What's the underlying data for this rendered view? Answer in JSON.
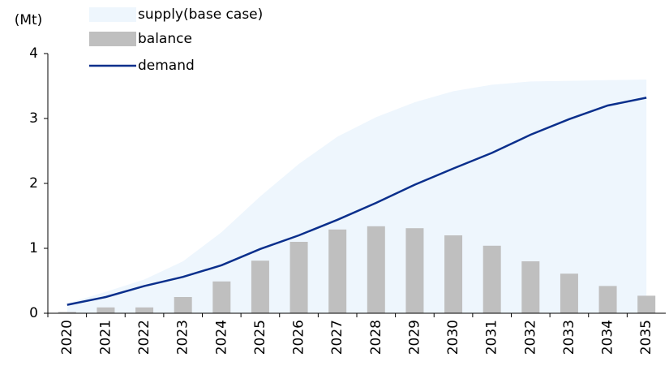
{
  "chart_data": {
    "type": "combo",
    "y_label": "(Mt)",
    "categories": [
      "2020",
      "2021",
      "2022",
      "2023",
      "2024",
      "2025",
      "2026",
      "2027",
      "2028",
      "2029",
      "2030",
      "2031",
      "2032",
      "2033",
      "2034",
      "2035"
    ],
    "series": [
      {
        "name": "supply(base case)",
        "type": "area",
        "color": "#eef6fd",
        "values": [
          0.15,
          0.33,
          0.52,
          0.8,
          1.25,
          1.8,
          2.3,
          2.72,
          3.02,
          3.25,
          3.42,
          3.52,
          3.57,
          3.58,
          3.59,
          3.6
        ]
      },
      {
        "name": "balance",
        "type": "bar",
        "color": "#bfbfbf",
        "values": [
          0.02,
          0.09,
          0.09,
          0.25,
          0.49,
          0.81,
          1.1,
          1.29,
          1.34,
          1.31,
          1.2,
          1.04,
          0.8,
          0.61,
          0.42,
          0.27
        ]
      },
      {
        "name": "demand",
        "type": "line",
        "color": "#0a2f8c",
        "values": [
          0.13,
          0.25,
          0.42,
          0.56,
          0.74,
          0.99,
          1.2,
          1.44,
          1.7,
          1.98,
          2.23,
          2.47,
          2.75,
          2.99,
          3.2,
          3.32
        ]
      }
    ],
    "ylim": [
      0,
      4
    ],
    "yticks": [
      0,
      1,
      2,
      3,
      4
    ]
  }
}
